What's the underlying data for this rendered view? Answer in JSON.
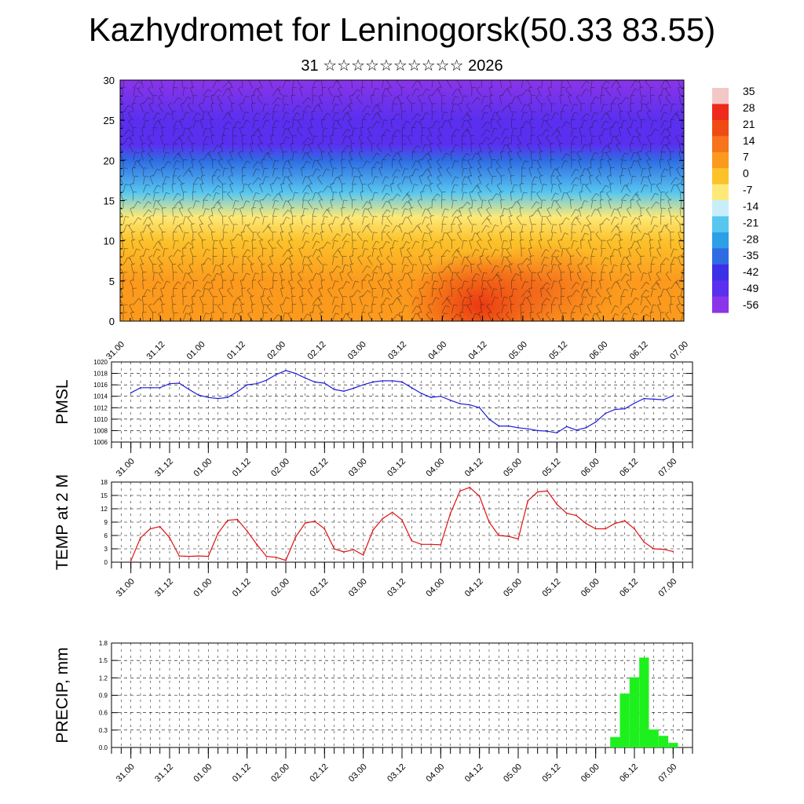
{
  "header": {
    "title": "Kazhydromet for Leninogorsk(50.33 83.55)",
    "subtitle": "31 ☆☆☆☆☆☆☆☆☆☆ 2026"
  },
  "time_ticks": [
    "31.00",
    "31.12",
    "01.00",
    "01.12",
    "02.00",
    "02.12",
    "03.00",
    "03.12",
    "04.00",
    "04.12",
    "05.00",
    "05.12",
    "06.00",
    "06.12",
    "07.00"
  ],
  "chart_data": [
    {
      "id": "profile",
      "type": "heatmap",
      "title": "",
      "xlabel": "",
      "ylabel": "",
      "ylim": [
        0,
        30
      ],
      "yticks": [
        "0",
        "5",
        "10",
        "15",
        "20",
        "25",
        "30"
      ],
      "colorbar_labels": [
        "35",
        "28",
        "21",
        "14",
        "7",
        "0",
        "-7",
        "-14",
        "-21",
        "-28",
        "-35",
        "-42",
        "-49",
        "-56"
      ],
      "colorbar_colors": [
        "#f4c7c7",
        "#ee2a1c",
        "#f04b14",
        "#f7731c",
        "#fb9a1d",
        "#fcc22a",
        "#fde978",
        "#c9eefb",
        "#58c7f0",
        "#2d9fe6",
        "#2f6ce3",
        "#3b30e8",
        "#5a2ff0",
        "#8a35e8"
      ],
      "temperature_by_height": [
        {
          "height_km": 0,
          "temp": 9
        },
        {
          "height_km": 5,
          "temp": 6
        },
        {
          "height_km": 10,
          "temp": 0
        },
        {
          "height_km": 13,
          "temp": -8
        },
        {
          "height_km": 16,
          "temp": -20
        },
        {
          "height_km": 20,
          "temp": -35
        },
        {
          "height_km": 22,
          "temp": -49
        },
        {
          "height_km": 25,
          "temp": -52
        },
        {
          "height_km": 30,
          "temp": -56
        }
      ]
    },
    {
      "id": "pmsl",
      "type": "line",
      "ylabel": "PMSL",
      "ylim": [
        1006,
        1020
      ],
      "yticks": [
        "1006",
        "1008",
        "1010",
        "1012",
        "1014",
        "1016",
        "1018",
        "1020"
      ],
      "color": "#1f1fdb",
      "series": [
        {
          "name": "PMSL",
          "values": [
            1014.6,
            1015.5,
            1015.5,
            1015.5,
            1016.2,
            1016.3,
            1015.2,
            1014.2,
            1013.8,
            1013.6,
            1013.8,
            1014.8,
            1016.0,
            1016.2,
            1016.8,
            1017.8,
            1018.5,
            1018.0,
            1017.2,
            1016.5,
            1016.3,
            1015.2,
            1014.9,
            1015.4,
            1016.0,
            1016.5,
            1016.7,
            1016.7,
            1016.5,
            1015.5,
            1014.5,
            1013.8,
            1014.0,
            1013.3,
            1012.7,
            1012.5,
            1012.0,
            1010.0,
            1008.8,
            1008.8,
            1008.5,
            1008.3,
            1008.0,
            1007.9,
            1007.6,
            1008.7,
            1008.1,
            1008.5,
            1009.5,
            1011.0,
            1011.7,
            1011.8,
            1012.8,
            1013.6,
            1013.5,
            1013.4,
            1014.1
          ]
        }
      ]
    },
    {
      "id": "temp2m",
      "type": "line",
      "ylabel": "TEMP at 2 M",
      "ylim": [
        0,
        18
      ],
      "yticks": [
        "0",
        "3",
        "6",
        "9",
        "12",
        "15",
        "18"
      ],
      "color": "#e01010",
      "series": [
        {
          "name": "TEMP at 2 M",
          "values": [
            0.3,
            5.5,
            7.5,
            8.0,
            5.5,
            1.4,
            1.3,
            1.4,
            1.3,
            6.5,
            9.4,
            9.6,
            7.0,
            4.0,
            1.3,
            1.1,
            0.4,
            5.6,
            8.8,
            9.2,
            7.5,
            3.0,
            2.3,
            2.8,
            1.6,
            7.2,
            9.8,
            11.2,
            9.5,
            4.8,
            4.0,
            4.0,
            3.9,
            11.0,
            16.0,
            16.8,
            14.8,
            9.0,
            6.0,
            5.8,
            5.2,
            13.8,
            15.8,
            16.0,
            13.0,
            11.0,
            10.5,
            8.7,
            7.5,
            7.5,
            8.7,
            9.3,
            7.5,
            4.5,
            3.0,
            2.9,
            2.4
          ]
        }
      ]
    },
    {
      "id": "precip",
      "type": "bar",
      "ylabel": "PRECIP, mm",
      "ylim": [
        0,
        1.8
      ],
      "yticks": [
        "0.0",
        "0.3",
        "0.6",
        "0.9",
        "1.2",
        "1.5",
        "1.8"
      ],
      "color": "#1ef01e",
      "bars": [
        {
          "x": 6.25,
          "value": 0.18
        },
        {
          "x": 6.375,
          "value": 0.93
        },
        {
          "x": 6.5,
          "value": 1.21
        },
        {
          "x": 6.625,
          "value": 1.55
        },
        {
          "x": 6.75,
          "value": 0.31
        },
        {
          "x": 6.875,
          "value": 0.2
        },
        {
          "x": 7.0,
          "value": 0.08
        }
      ]
    }
  ]
}
